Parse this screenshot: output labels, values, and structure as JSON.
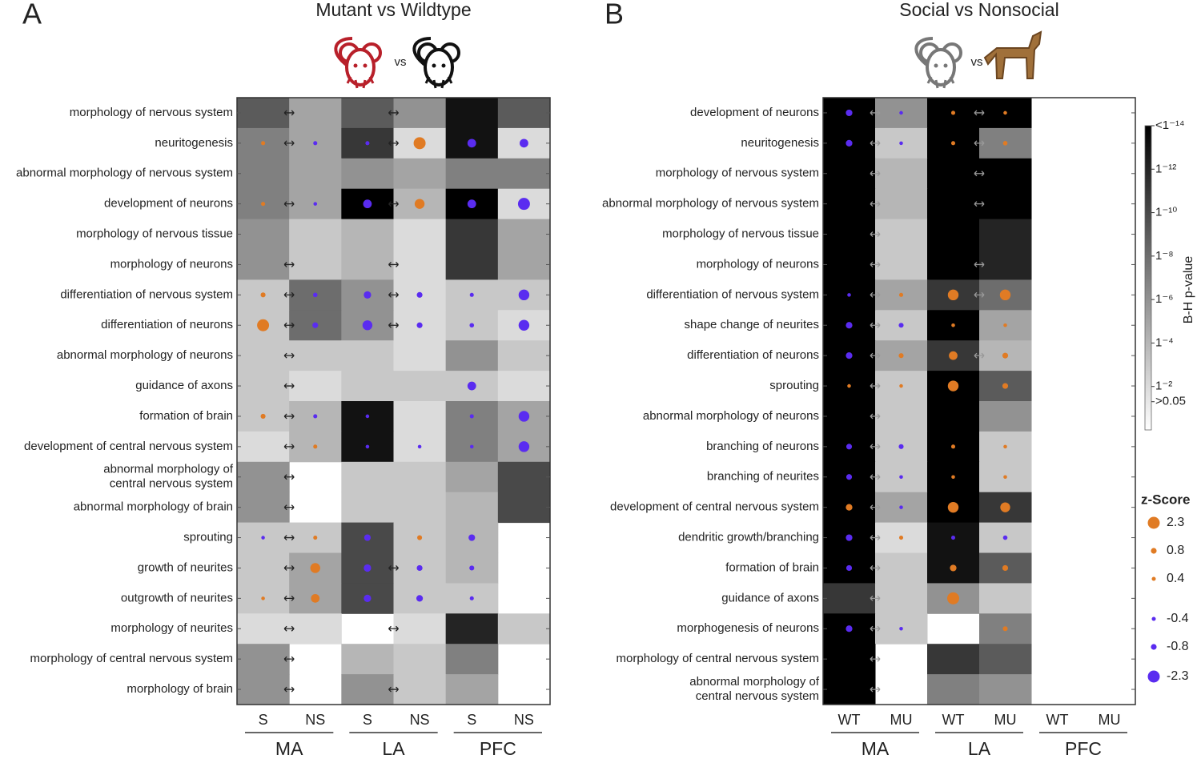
{
  "chart_data": [
    {
      "type": "heatmap",
      "panel": "A",
      "title": "Mutant vs Wildtype",
      "vs": "vs",
      "rows": [
        "morphology of nervous system",
        "neuritogenesis",
        "abnormal morphology of nervous system",
        "development of neurons",
        "morphology of nervous tissue",
        "morphology of neurons",
        "differentiation of nervous system",
        "differentiation of neurons",
        "abnormal morphology of neurons",
        "guidance of axons",
        "formation of brain",
        "development of central nervous system",
        [
          "abnormal morphology of",
          "central nervous system"
        ],
        "abnormal morphology of brain",
        "sprouting",
        "growth of neurites",
        "outgrowth of neurites",
        "morphology of neurites",
        "morphology of central nervous system",
        "morphology of brain"
      ],
      "columns": [
        {
          "name": "S",
          "color": "#8a7a60"
        },
        {
          "name": "NS",
          "color": "#9a6a2c"
        },
        {
          "name": "S",
          "color": "#8a7a60"
        },
        {
          "name": "NS",
          "color": "#9a6a2c"
        },
        {
          "name": "S",
          "color": "#8a7a60"
        },
        {
          "name": "NS",
          "color": "#9a6a2c"
        }
      ],
      "groups": [
        "MA",
        "LA",
        "PFC"
      ],
      "clim": [
        0,
        14
      ],
      "cells": [
        [
          9,
          5,
          9,
          6,
          13,
          9
        ],
        [
          7,
          5,
          11,
          2,
          13,
          2
        ],
        [
          7,
          5,
          6,
          5,
          7,
          7
        ],
        [
          7,
          5,
          14,
          4,
          14,
          2
        ],
        [
          6,
          3,
          4,
          2,
          11,
          5
        ],
        [
          6,
          3,
          4,
          2,
          11,
          5
        ],
        [
          3,
          8,
          6,
          2,
          3,
          3
        ],
        [
          3,
          8,
          6,
          2,
          3,
          2
        ],
        [
          3,
          3,
          3,
          2,
          6,
          3
        ],
        [
          3,
          2,
          3,
          3,
          3,
          2
        ],
        [
          3,
          4,
          13,
          2,
          7,
          5
        ],
        [
          2,
          4,
          13,
          2,
          7,
          5
        ],
        [
          6,
          null,
          3,
          3,
          5,
          10
        ],
        [
          6,
          null,
          3,
          3,
          4,
          10
        ],
        [
          3,
          3,
          10,
          3,
          4,
          null
        ],
        [
          3,
          5,
          10,
          3,
          4,
          null
        ],
        [
          3,
          5,
          10,
          3,
          3,
          null
        ],
        [
          2,
          2,
          null,
          2,
          12,
          3
        ],
        [
          6,
          null,
          4,
          3,
          7,
          null
        ],
        [
          6,
          null,
          6,
          3,
          5,
          null
        ]
      ],
      "dots": [
        [
          null,
          null,
          null,
          null,
          null,
          null
        ],
        [
          0.4,
          -0.4,
          -0.4,
          2.3,
          -1.5,
          -1.5
        ],
        [
          null,
          null,
          null,
          null,
          null,
          null
        ],
        [
          0.4,
          -0.3,
          -1.5,
          1.8,
          -1.5,
          -2.3
        ],
        [
          null,
          null,
          null,
          null,
          null,
          null
        ],
        [
          null,
          null,
          null,
          null,
          null,
          null
        ],
        [
          0.6,
          -0.5,
          -1.2,
          -0.8,
          -0.4,
          -2
        ],
        [
          2.3,
          -0.8,
          -1.8,
          -0.8,
          -0.5,
          -2
        ],
        [
          null,
          null,
          null,
          null,
          null,
          null
        ],
        [
          null,
          null,
          null,
          null,
          -1.5,
          null
        ],
        [
          0.6,
          -0.4,
          -0.3,
          null,
          -0.4,
          -2
        ],
        [
          null,
          0.4,
          -0.3,
          -0.3,
          -0.3,
          -2
        ],
        [
          null,
          null,
          null,
          null,
          null,
          null
        ],
        [
          null,
          null,
          null,
          null,
          null,
          null
        ],
        [
          -0.3,
          0.4,
          -1,
          0.6,
          -1,
          null
        ],
        [
          null,
          1.8,
          -1.2,
          -0.8,
          -0.6,
          null
        ],
        [
          0.3,
          1.5,
          -1.2,
          -1,
          -0.4,
          null
        ],
        [
          null,
          null,
          null,
          null,
          null,
          null
        ],
        [
          null,
          null,
          null,
          null,
          null,
          null
        ],
        [
          null,
          null,
          null,
          null,
          null,
          null
        ]
      ],
      "arrows": [
        [
          0,
          1,
          3,
          5,
          6,
          7,
          8,
          9,
          10,
          11,
          12,
          13,
          14,
          15,
          16,
          17,
          18,
          19
        ],
        [
          0,
          1,
          3,
          5,
          6,
          7,
          15,
          17,
          19
        ],
        []
      ],
      "arrow_color": "#222",
      "positive_color": "#e07b24",
      "negative_color": "#5a2cf0"
    },
    {
      "type": "heatmap",
      "panel": "B",
      "title": "Social vs Nonsocial",
      "vs": "vs",
      "rows": [
        "development of neurons",
        "neuritogenesis",
        "morphology of nervous system",
        "abnormal morphology of nervous system",
        "morphology of nervous tissue",
        "morphology of neurons",
        "differentiation of nervous system",
        "shape change of neurites",
        "differentiation of neurons",
        "sprouting",
        "abnormal morphology of neurons",
        "branching of neurons",
        "branching of neurites",
        "development of central nervous system",
        "dendritic growth/branching",
        "formation of brain",
        "guidance of axons",
        "morphogenesis of neurons",
        "morphology of central nervous system",
        [
          "abnormal morphology of",
          "central nervous system"
        ]
      ],
      "columns": [
        {
          "name": "WT",
          "color": "#222222"
        },
        {
          "name": "MU",
          "color": "#c0202a"
        },
        {
          "name": "WT",
          "color": "#222222"
        },
        {
          "name": "MU",
          "color": "#c0202a"
        },
        {
          "name": "WT",
          "color": "#222222"
        },
        {
          "name": "MU",
          "color": "#c0202a"
        }
      ],
      "groups": [
        "MA",
        "LA",
        "PFC"
      ],
      "clim": [
        0,
        14
      ],
      "cells": [
        [
          14,
          6,
          14,
          14,
          null,
          null
        ],
        [
          14,
          3,
          14,
          7,
          null,
          null
        ],
        [
          14,
          4,
          14,
          14,
          null,
          null
        ],
        [
          14,
          4,
          14,
          14,
          null,
          null
        ],
        [
          14,
          3,
          14,
          12,
          null,
          null
        ],
        [
          14,
          3,
          14,
          12,
          null,
          null
        ],
        [
          14,
          5,
          11,
          8,
          null,
          null
        ],
        [
          14,
          3,
          14,
          5,
          null,
          null
        ],
        [
          14,
          5,
          11,
          4,
          null,
          null
        ],
        [
          14,
          3,
          14,
          9,
          null,
          null
        ],
        [
          14,
          3,
          14,
          6,
          null,
          null
        ],
        [
          14,
          3,
          14,
          3,
          null,
          null
        ],
        [
          14,
          3,
          14,
          3,
          null,
          null
        ],
        [
          14,
          5,
          14,
          11,
          null,
          null
        ],
        [
          14,
          2,
          13,
          3,
          null,
          null
        ],
        [
          14,
          3,
          13,
          9,
          null,
          null
        ],
        [
          11,
          3,
          6,
          3,
          null,
          null
        ],
        [
          14,
          3,
          null,
          7,
          null,
          null
        ],
        [
          14,
          null,
          11,
          9,
          null,
          null
        ],
        [
          14,
          null,
          7,
          6,
          null,
          null
        ]
      ],
      "dots": [
        [
          -1,
          -0.3,
          0.4,
          0.3,
          null,
          null
        ],
        [
          -1,
          -0.3,
          0.4,
          0.5,
          null,
          null
        ],
        [
          null,
          null,
          null,
          null,
          null,
          null
        ],
        [
          null,
          null,
          null,
          null,
          null,
          null
        ],
        [
          null,
          null,
          null,
          null,
          null,
          null
        ],
        [
          null,
          null,
          null,
          null,
          null,
          null
        ],
        [
          -0.3,
          0.4,
          2,
          2,
          null,
          null
        ],
        [
          -1,
          -0.6,
          0.3,
          0.3,
          null,
          null
        ],
        [
          -1,
          0.6,
          1.5,
          0.8,
          null,
          null
        ],
        [
          0.3,
          0.3,
          2,
          0.8,
          null,
          null
        ],
        [
          null,
          null,
          null,
          null,
          null,
          null
        ],
        [
          -0.8,
          -0.6,
          0.4,
          0.3,
          null,
          null
        ],
        [
          -0.8,
          -0.3,
          0.3,
          0.3,
          null,
          null
        ],
        [
          1,
          -0.3,
          2,
          1.8,
          null,
          null
        ],
        [
          -1,
          0.4,
          -0.4,
          -0.5,
          null,
          null
        ],
        [
          -0.8,
          null,
          1,
          0.8,
          null,
          null
        ],
        [
          null,
          null,
          2.3,
          null,
          null,
          null
        ],
        [
          -1,
          -0.3,
          null,
          0.6,
          null,
          null
        ],
        [
          null,
          null,
          null,
          null,
          null,
          null
        ],
        [
          null,
          null,
          null,
          null,
          null,
          null
        ]
      ],
      "arrows": [
        [
          0,
          1,
          2,
          3,
          4,
          5,
          6,
          7,
          8,
          9,
          10,
          11,
          12,
          13,
          14,
          15,
          16,
          17,
          18,
          19
        ],
        [
          0,
          1,
          2,
          3,
          5,
          6,
          8
        ],
        []
      ],
      "arrow_color": "#999",
      "positive_color": "#e07b24",
      "negative_color": "#5a2cf0",
      "colorbar": {
        "label": "B-H p-value",
        "lim": [
          0,
          14
        ],
        "ticks": [
          {
            "value": 14,
            "label": "<1⁻¹⁴"
          },
          {
            "value": 12,
            "label": "1⁻¹²"
          },
          {
            "value": 10,
            "label": "1⁻¹⁰"
          },
          {
            "value": 8,
            "label": "1⁻⁸"
          },
          {
            "value": 6,
            "label": "1⁻⁶"
          },
          {
            "value": 4,
            "label": "1⁻⁴"
          },
          {
            "value": 2,
            "label": "1⁻²"
          },
          {
            "value": 1.3,
            "label": ">0.05"
          }
        ]
      },
      "size_legend": {
        "title": "z-Score",
        "values": [
          2.3,
          0.8,
          0.4,
          -0.4,
          -0.8,
          -2.3
        ]
      }
    }
  ]
}
